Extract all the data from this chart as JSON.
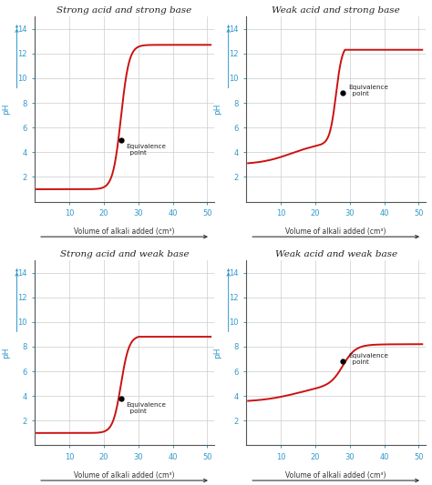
{
  "titles": [
    "Strong acid and strong base",
    "Weak acid and strong base",
    "Strong acid and weak base",
    "Weak acid and weak base"
  ],
  "eq_points": [
    [
      25,
      5.0
    ],
    [
      28,
      8.8
    ],
    [
      25,
      3.8
    ],
    [
      28,
      6.8
    ]
  ],
  "curve_color": "#cc1111",
  "bg_color": "#ffffff",
  "grid_color": "#cccccc",
  "tick_color": "#3399cc",
  "title_color": "#222222",
  "axis_label_color": "#3399cc",
  "eq_label_color": "#222222",
  "xlabel": "Volume of alkali added (cm³)",
  "ylabel": "pH",
  "xlim": [
    0,
    52
  ],
  "ylim": [
    0,
    15
  ],
  "xticks": [
    10,
    20,
    30,
    40,
    50
  ],
  "yticks": [
    2,
    4,
    6,
    8,
    10,
    12,
    14
  ]
}
